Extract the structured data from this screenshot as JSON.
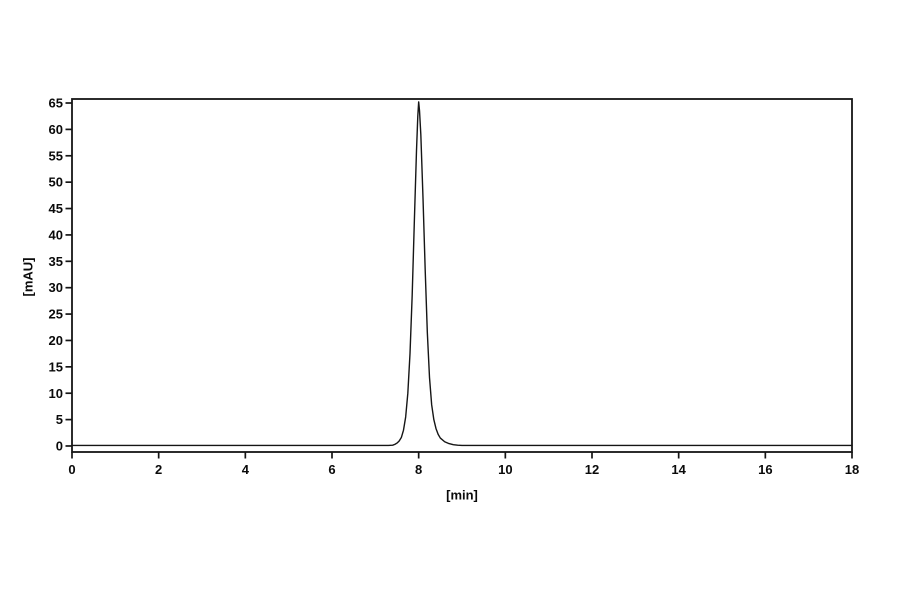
{
  "page": {
    "background": "#ffffff",
    "foreground": "#0a0a0a"
  },
  "chart_data": {
    "type": "line",
    "title": "",
    "xlabel": "[min]",
    "ylabel": "[mAU]",
    "xlim": [
      0,
      18
    ],
    "ylim": [
      -1.14,
      65.76
    ],
    "x_ticks": [
      0,
      2,
      4,
      6,
      8,
      10,
      12,
      14,
      16,
      18
    ],
    "y_ticks": [
      0,
      5,
      10,
      15,
      20,
      25,
      30,
      35,
      40,
      45,
      50,
      55,
      60,
      65
    ],
    "grid": false,
    "frame": true,
    "legend": null,
    "line_color": "#151515",
    "series": [
      {
        "name": "detector-signal",
        "points": [
          [
            0,
            0.1
          ],
          [
            7.0,
            0.1
          ],
          [
            7.3,
            0.1
          ],
          [
            7.4,
            0.15
          ],
          [
            7.45,
            0.3
          ],
          [
            7.5,
            0.55
          ],
          [
            7.55,
            0.95
          ],
          [
            7.6,
            1.6
          ],
          [
            7.65,
            3.0
          ],
          [
            7.7,
            5.5
          ],
          [
            7.75,
            10.0
          ],
          [
            7.8,
            17.5
          ],
          [
            7.85,
            28.5
          ],
          [
            7.9,
            42.5
          ],
          [
            7.95,
            56.0
          ],
          [
            7.98,
            62.5
          ],
          [
            8.0,
            65.2
          ],
          [
            8.02,
            63.5
          ],
          [
            8.05,
            59.0
          ],
          [
            8.1,
            47.0
          ],
          [
            8.15,
            33.5
          ],
          [
            8.2,
            21.5
          ],
          [
            8.25,
            13.0
          ],
          [
            8.3,
            7.8
          ],
          [
            8.35,
            5.0
          ],
          [
            8.4,
            3.3
          ],
          [
            8.45,
            2.2
          ],
          [
            8.5,
            1.5
          ],
          [
            8.6,
            0.8
          ],
          [
            8.7,
            0.45
          ],
          [
            8.8,
            0.25
          ],
          [
            8.9,
            0.15
          ],
          [
            9.0,
            0.1
          ],
          [
            10.0,
            0.1
          ],
          [
            18,
            0.1
          ]
        ]
      }
    ],
    "peaks": [
      {
        "retention_time_min": 8.0,
        "height_mAU": 65,
        "baseline_mAU": 0
      }
    ]
  }
}
